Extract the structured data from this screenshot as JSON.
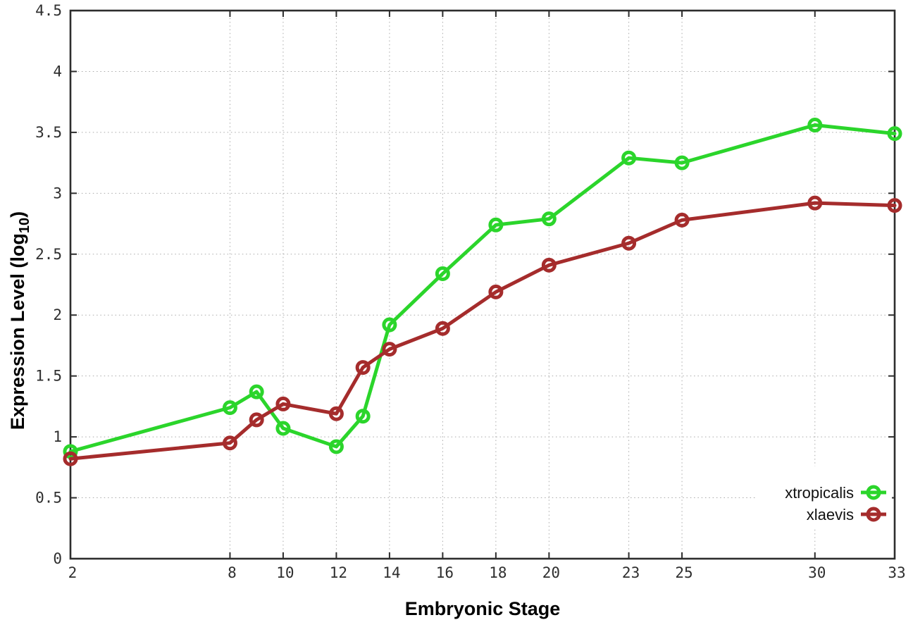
{
  "chart_data": {
    "type": "line",
    "title": "",
    "xlabel": "Embryonic Stage",
    "ylabel": "Expression Level (log10)",
    "ylabel_parts": {
      "main": "Expression Level (log",
      "sub": "10",
      "close": ")"
    },
    "xlim": [
      2,
      33
    ],
    "ylim": [
      0,
      4.5
    ],
    "grid": true,
    "grid_style": "dotted",
    "legend_position": "inside-bottom-right",
    "background_color": "#ffffff",
    "border_color": "#2d2d2d",
    "grid_color": "#a9a9a9",
    "x": [
      2,
      8,
      9,
      10,
      12,
      13,
      14,
      16,
      18,
      20,
      23,
      25,
      30,
      33
    ],
    "xticks": [
      {
        "v": 2,
        "label": "2"
      },
      {
        "v": 8,
        "label": "8"
      },
      {
        "v": 10,
        "label": "10"
      },
      {
        "v": 12,
        "label": "12"
      },
      {
        "v": 14,
        "label": "14"
      },
      {
        "v": 16,
        "label": "16"
      },
      {
        "v": 18,
        "label": "18"
      },
      {
        "v": 20,
        "label": "20"
      },
      {
        "v": 23,
        "label": "23"
      },
      {
        "v": 25,
        "label": "25"
      },
      {
        "v": 30,
        "label": "30"
      },
      {
        "v": 33,
        "label": "33"
      }
    ],
    "yticks": [
      {
        "v": 0,
        "label": "0"
      },
      {
        "v": 0.5,
        "label": "0.5"
      },
      {
        "v": 1,
        "label": "1"
      },
      {
        "v": 1.5,
        "label": "1.5"
      },
      {
        "v": 2,
        "label": "2"
      },
      {
        "v": 2.5,
        "label": "2.5"
      },
      {
        "v": 3,
        "label": "3"
      },
      {
        "v": 3.5,
        "label": "3.5"
      },
      {
        "v": 4,
        "label": "4"
      },
      {
        "v": 4.5,
        "label": "4.5"
      }
    ],
    "series": [
      {
        "name": "xtropicalis",
        "color": "#2bd52b",
        "marker": "open-circle",
        "values": [
          0.88,
          1.24,
          1.37,
          1.07,
          0.92,
          1.17,
          1.92,
          2.34,
          2.74,
          2.79,
          3.29,
          3.25,
          3.56,
          3.49
        ]
      },
      {
        "name": "xlaevis",
        "color": "#a52c2c",
        "marker": "open-circle",
        "values": [
          0.82,
          0.95,
          1.14,
          1.27,
          1.19,
          1.57,
          1.72,
          1.89,
          2.19,
          2.41,
          2.59,
          2.78,
          2.92,
          2.9
        ]
      }
    ]
  }
}
